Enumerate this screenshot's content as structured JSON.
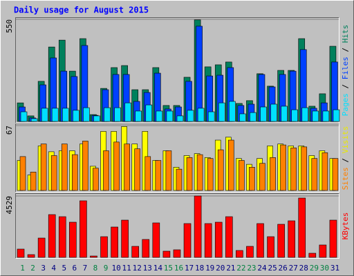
{
  "title": "Daily usage for August 2015",
  "categories": [
    "1",
    "2",
    "3",
    "4",
    "5",
    "6",
    "7",
    "8",
    "9",
    "10",
    "11",
    "12",
    "13",
    "14",
    "15",
    "16",
    "17",
    "18",
    "19",
    "20",
    "21",
    "22",
    "23",
    "24",
    "25",
    "26",
    "27",
    "28",
    "29",
    "30",
    "31"
  ],
  "category_colors": [
    "#008040",
    "#008040",
    "#000080",
    "#000080",
    "#000080",
    "#000080",
    "#000080",
    "#008040",
    "#008040",
    "#000080",
    "#000080",
    "#000080",
    "#000080",
    "#000080",
    "#008040",
    "#008040",
    "#000080",
    "#000080",
    "#000080",
    "#000080",
    "#000080",
    "#008040",
    "#008040",
    "#000080",
    "#000080",
    "#000080",
    "#000080",
    "#000080",
    "#008040",
    "#008040",
    "#000080"
  ],
  "chart_data": [
    {
      "type": "bar",
      "ylim": [
        0,
        550
      ],
      "yticks": [
        550
      ],
      "legend_separator": " / ",
      "series": [
        {
          "name": "Pages",
          "color": "#00e0ff",
          "values": [
            52,
            15,
            71,
            71,
            71,
            60,
            74,
            30,
            74,
            74,
            100,
            56,
            89,
            56,
            56,
            30,
            60,
            71,
            52,
            100,
            108,
            41,
            48,
            78,
            93,
            82,
            63,
            74,
            56,
            56,
            63
          ]
        },
        {
          "name": "Files",
          "color": "#0040ff",
          "values": [
            78,
            19,
            197,
            342,
            271,
            242,
            409,
            33,
            171,
            253,
            253,
            108,
            156,
            260,
            67,
            78,
            216,
            513,
            245,
            249,
            290,
            86,
            93,
            253,
            186,
            253,
            271,
            387,
            71,
            100,
            320
          ]
        },
        {
          "name": "Hits",
          "color": "#00805c",
          "values": [
            100,
            30,
            216,
            401,
            438,
            271,
            446,
            37,
            178,
            290,
            301,
            171,
            171,
            290,
            86,
            86,
            238,
            547,
            294,
            305,
            320,
            97,
            112,
            257,
            190,
            275,
            275,
            446,
            82,
            149,
            405
          ]
        }
      ]
    },
    {
      "type": "bar",
      "ylim": [
        0,
        67
      ],
      "yticks": [
        67
      ],
      "legend_separator": " / ",
      "series": [
        {
          "name": "Sites",
          "color": "#ff8000",
          "values": [
            35,
            19,
            48,
            36,
            48,
            37,
            51,
            23,
            41,
            50,
            48,
            43,
            35,
            31,
            41,
            22,
            34,
            37,
            33,
            42,
            52,
            31,
            24,
            28,
            34,
            47,
            44,
            45,
            33,
            39,
            33
          ]
        },
        {
          "name": "Visits",
          "color": "#ffff00",
          "values": [
            31,
            16,
            46,
            40,
            41,
            41,
            48,
            25,
            61,
            61,
            66,
            48,
            61,
            31,
            41,
            24,
            36,
            38,
            34,
            52,
            55,
            33,
            27,
            33,
            46,
            48,
            46,
            46,
            36,
            41,
            33
          ]
        }
      ]
    },
    {
      "type": "bar",
      "ylim": [
        0,
        4529
      ],
      "yticks": [
        4529
      ],
      "legend_separator": " / ",
      "series": [
        {
          "name": "KBytes",
          "color": "#ff0000",
          "values": [
            611,
            204,
            1425,
            3155,
            3002,
            2595,
            4173,
            102,
            1527,
            2239,
            2748,
            814,
            1323,
            2544,
            458,
            560,
            2494,
            4529,
            2494,
            2595,
            3002,
            509,
            814,
            2494,
            1527,
            2442,
            2697,
            4376,
            305,
            916,
            2748
          ]
        }
      ]
    }
  ]
}
